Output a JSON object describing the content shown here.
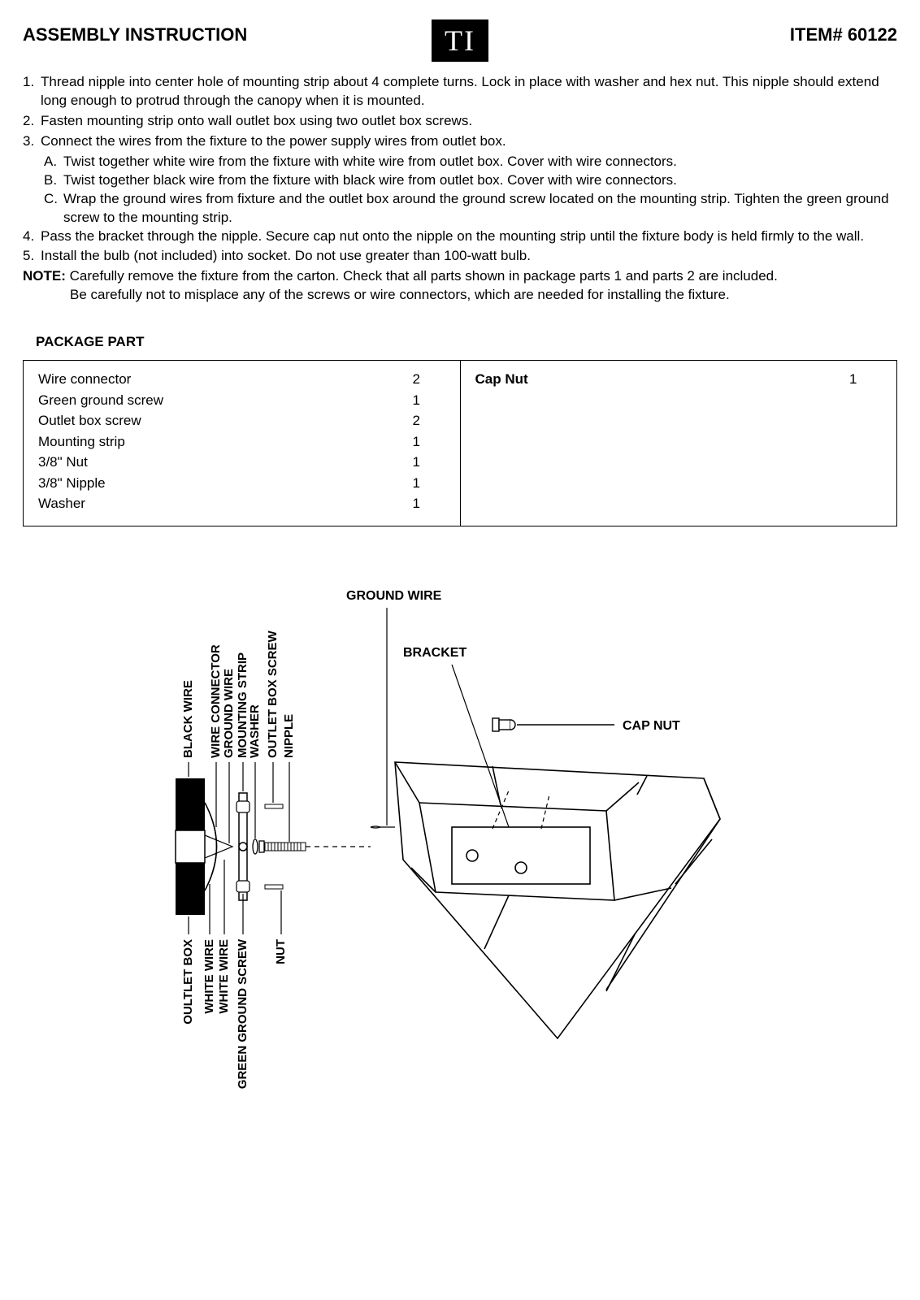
{
  "header": {
    "title": "ASSEMBLY INSTRUCTION",
    "logo": "TI",
    "item": "ITEM# 60122"
  },
  "steps": [
    {
      "n": "1.",
      "t": "Thread nipple into center hole of mounting strip about 4 complete turns. Lock in place with washer and hex nut. This nipple should extend long enough to protrud through the canopy when it is mounted."
    },
    {
      "n": "2.",
      "t": "Fasten mounting strip onto wall outlet box using two outlet box screws."
    },
    {
      "n": "3.",
      "t": "Connect the wires from the fixture to the power supply wires from outlet box."
    }
  ],
  "substeps": [
    {
      "n": "A.",
      "t": "Twist together white wire from the fixture with white wire from outlet box. Cover with wire connectors."
    },
    {
      "n": "B.",
      "t": "Twist together black wire from the fixture with black wire from outlet box. Cover with wire connectors."
    },
    {
      "n": "C.",
      "t": "Wrap the ground wires from fixture and the outlet box around the ground screw located on the mounting strip. Tighten the green ground screw to the mounting strip."
    }
  ],
  "steps2": [
    {
      "n": "4.",
      "t": "Pass the bracket through the nipple. Secure cap nut onto the nipple on the mounting strip until the fixture body is held firmly to the wall."
    },
    {
      "n": "5.",
      "t": "Install the bulb (not included) into socket. Do not use greater than 100-watt bulb."
    }
  ],
  "note": {
    "label": "NOTE:",
    "line1": "Carefully remove the fixture from the carton. Check that all parts shown in package parts 1 and parts 2 are included.",
    "line2": "Be carefully not to misplace any of the screws or wire connectors, which are needed for installing the fixture."
  },
  "package_section": "PACKAGE PART",
  "parts_left": [
    {
      "name": "Wire connector",
      "qty": "2"
    },
    {
      "name": "Green ground screw",
      "qty": "1"
    },
    {
      "name": "Outlet box screw",
      "qty": "2"
    },
    {
      "name": "Mounting strip",
      "qty": "1"
    },
    {
      "name": "3/8\" Nut",
      "qty": "1"
    },
    {
      "name": "3/8\" Nipple",
      "qty": "1"
    },
    {
      "name": "Washer",
      "qty": "1"
    }
  ],
  "parts_right": [
    {
      "name": "Cap Nut",
      "qty": "1",
      "bold": true
    }
  ],
  "diagram": {
    "top_labels": [
      "BLACK WIRE",
      "WIRE CONNECTOR",
      "GROUND WIRE",
      "MOUNTING STRIP",
      "WASHER",
      "OUTLET BOX SCREW",
      "NIPPLE"
    ],
    "bottom_labels": [
      "OULTLET BOX",
      "WHITE WIRE",
      "WHITE WIRE",
      "GREEN GROUND SCREW",
      "NUT"
    ],
    "right_labels": {
      "ground": "GROUND WIRE",
      "bracket": "BRACKET",
      "capnut": "CAP NUT"
    }
  }
}
